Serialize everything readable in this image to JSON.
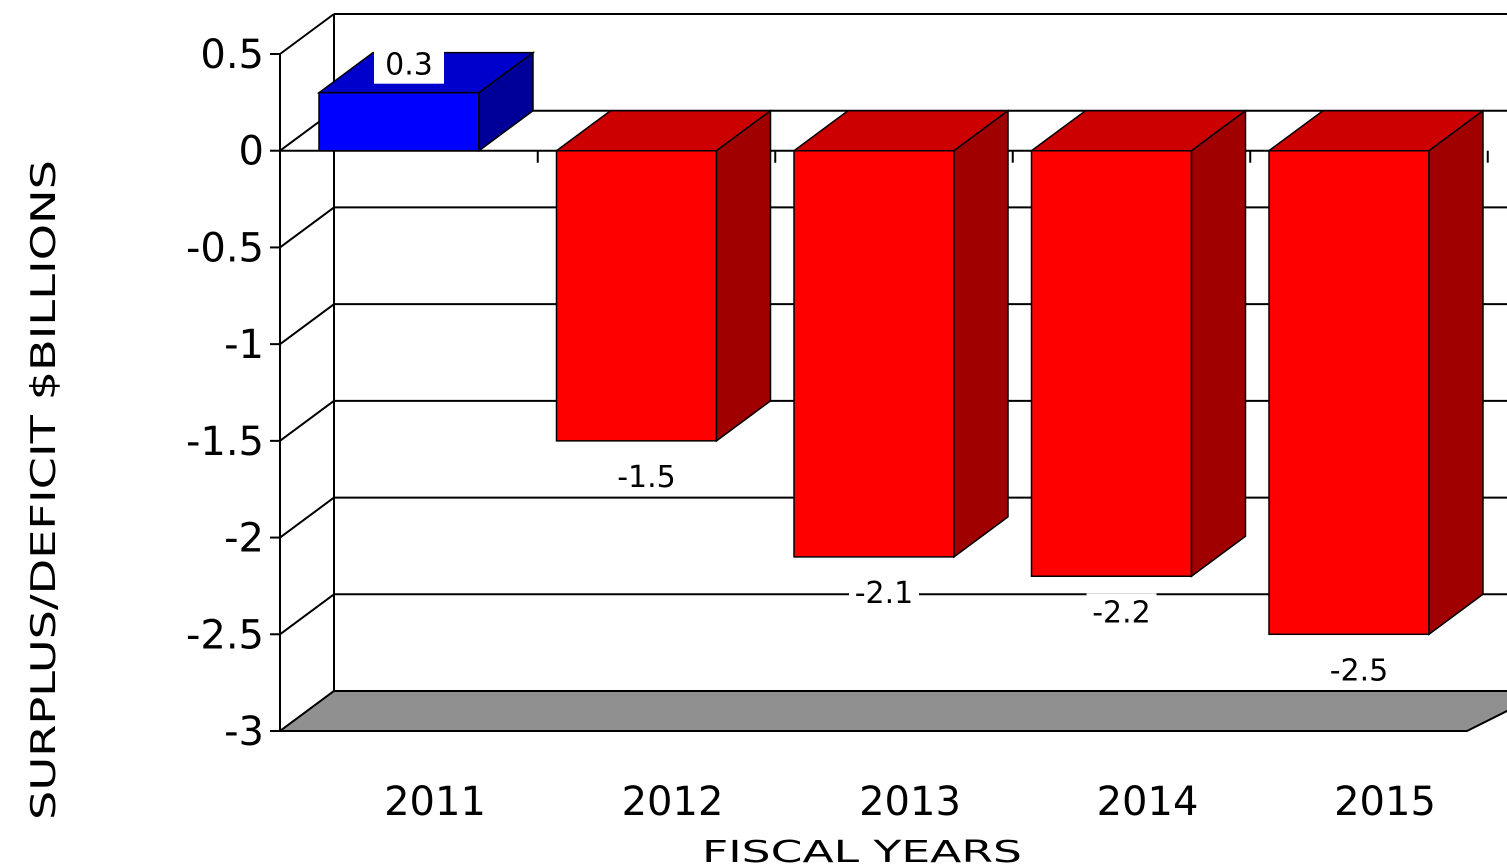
{
  "chart_data": {
    "type": "bar",
    "categories": [
      "2011",
      "2012",
      "2013",
      "2014",
      "2015"
    ],
    "values": [
      0.3,
      -1.5,
      -2.1,
      -2.2,
      -2.5
    ],
    "data_labels": [
      "0.3",
      "-1.5",
      "-2.1",
      "-2.2",
      "-2.5"
    ],
    "xlabel": "FISCAL YEARS",
    "ylabel": "SURPLUS/DEFICIT $BILLIONS",
    "ylim": [
      -3,
      0.5
    ],
    "yticks": [
      0.5,
      0,
      -0.5,
      -1,
      -1.5,
      -2,
      -2.5,
      -3
    ],
    "ytick_labels": [
      "0.5",
      "0",
      "-0.5",
      "-1",
      "-1.5",
      "-2",
      "-2.5",
      "-3"
    ],
    "grid": true,
    "legend": "none",
    "style": "3d",
    "colors": {
      "positive_front": "#0000ff",
      "positive_top": "#0000cc",
      "positive_side": "#000099",
      "negative_front": "#ff0000",
      "negative_top": "#cc0000",
      "negative_side": "#a00000",
      "floor": "#909090"
    }
  }
}
